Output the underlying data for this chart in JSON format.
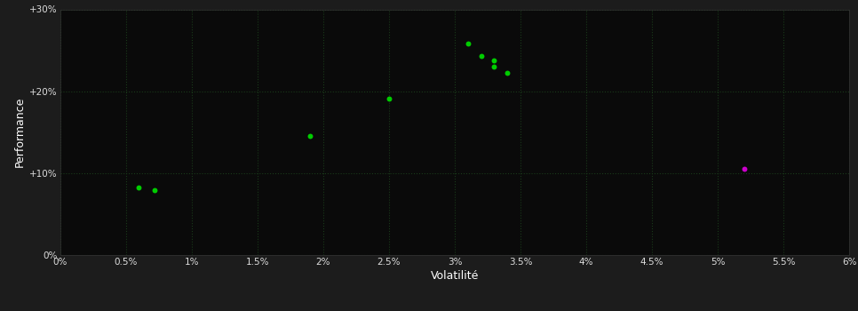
{
  "background_color": "#1c1c1c",
  "plot_bg_color": "#0a0a0a",
  "grid_color": "#1a3a1a",
  "grid_style": ":",
  "xlabel": "Volatilité",
  "ylabel": "Performance",
  "xlim": [
    0.0,
    0.06
  ],
  "ylim": [
    0.0,
    0.3
  ],
  "xticks": [
    0.0,
    0.005,
    0.01,
    0.015,
    0.02,
    0.025,
    0.03,
    0.035,
    0.04,
    0.045,
    0.05,
    0.055,
    0.06
  ],
  "xtick_labels": [
    "0%",
    "0.5%",
    "1%",
    "1.5%",
    "2%",
    "2.5%",
    "3%",
    "3.5%",
    "4%",
    "4.5%",
    "5%",
    "5.5%",
    "6%"
  ],
  "yticks": [
    0.0,
    0.1,
    0.2,
    0.3
  ],
  "ytick_labels": [
    "0%",
    "+10%",
    "+20%",
    "+30%"
  ],
  "green_points": [
    [
      0.006,
      0.083
    ],
    [
      0.0072,
      0.079
    ],
    [
      0.019,
      0.145
    ],
    [
      0.025,
      0.191
    ],
    [
      0.031,
      0.258
    ],
    [
      0.032,
      0.243
    ],
    [
      0.033,
      0.238
    ],
    [
      0.033,
      0.23
    ],
    [
      0.034,
      0.222
    ]
  ],
  "magenta_points": [
    [
      0.052,
      0.105
    ]
  ],
  "point_size": 18,
  "text_color": "#ffffff",
  "tick_color": "#dddddd",
  "axis_color": "#333333"
}
